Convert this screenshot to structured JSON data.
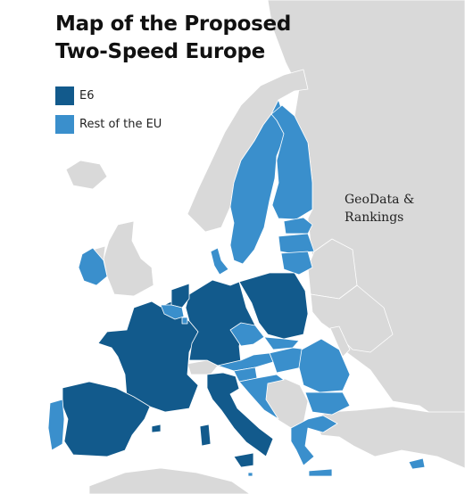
{
  "title_line1": "Map of the Proposed",
  "title_line2": "Two-Speed Europe",
  "legend": [
    {
      "label": "E6",
      "color": "#125a8c"
    },
    {
      "label": "Rest of the EU",
      "color": "#3a8fcc"
    }
  ],
  "watermark_line1": "GeoData &",
  "watermark_line2": "Rankings",
  "colors": {
    "background": "#ffffff",
    "non_eu": "#d9d9d9",
    "e6": "#125a8c",
    "rest_eu": "#3a8fcc"
  },
  "regions": [
    {
      "name": "France",
      "group": "e6"
    },
    {
      "name": "Germany",
      "group": "e6"
    },
    {
      "name": "Italy",
      "group": "e6"
    },
    {
      "name": "Spain",
      "group": "e6"
    },
    {
      "name": "Netherlands",
      "group": "e6"
    },
    {
      "name": "Poland",
      "group": "e6"
    },
    {
      "name": "Portugal",
      "group": "rest"
    },
    {
      "name": "Belgium",
      "group": "rest"
    },
    {
      "name": "Luxembourg",
      "group": "rest"
    },
    {
      "name": "Ireland",
      "group": "rest"
    },
    {
      "name": "Denmark",
      "group": "rest"
    },
    {
      "name": "Sweden",
      "group": "rest"
    },
    {
      "name": "Finland",
      "group": "rest"
    },
    {
      "name": "Estonia",
      "group": "rest"
    },
    {
      "name": "Latvia",
      "group": "rest"
    },
    {
      "name": "Lithuania",
      "group": "rest"
    },
    {
      "name": "Czechia",
      "group": "rest"
    },
    {
      "name": "Slovakia",
      "group": "rest"
    },
    {
      "name": "Austria",
      "group": "rest"
    },
    {
      "name": "Hungary",
      "group": "rest"
    },
    {
      "name": "Slovenia",
      "group": "rest"
    },
    {
      "name": "Croatia",
      "group": "rest"
    },
    {
      "name": "Romania",
      "group": "rest"
    },
    {
      "name": "Bulgaria",
      "group": "rest"
    },
    {
      "name": "Greece",
      "group": "rest"
    },
    {
      "name": "Cyprus",
      "group": "rest"
    },
    {
      "name": "Malta",
      "group": "rest"
    },
    {
      "name": "Norway",
      "group": "non_eu"
    },
    {
      "name": "Russia",
      "group": "non_eu"
    },
    {
      "name": "Belarus",
      "group": "non_eu"
    },
    {
      "name": "Ukraine",
      "group": "non_eu"
    },
    {
      "name": "Moldova",
      "group": "non_eu"
    },
    {
      "name": "Great Britain",
      "group": "non_eu"
    },
    {
      "name": "Northern Ireland",
      "group": "non_eu"
    },
    {
      "name": "Iceland",
      "group": "non_eu"
    },
    {
      "name": "Switzerland",
      "group": "non_eu"
    },
    {
      "name": "Western Balkans",
      "group": "non_eu"
    },
    {
      "name": "Turkey",
      "group": "non_eu"
    },
    {
      "name": "North Africa",
      "group": "non_eu"
    }
  ]
}
